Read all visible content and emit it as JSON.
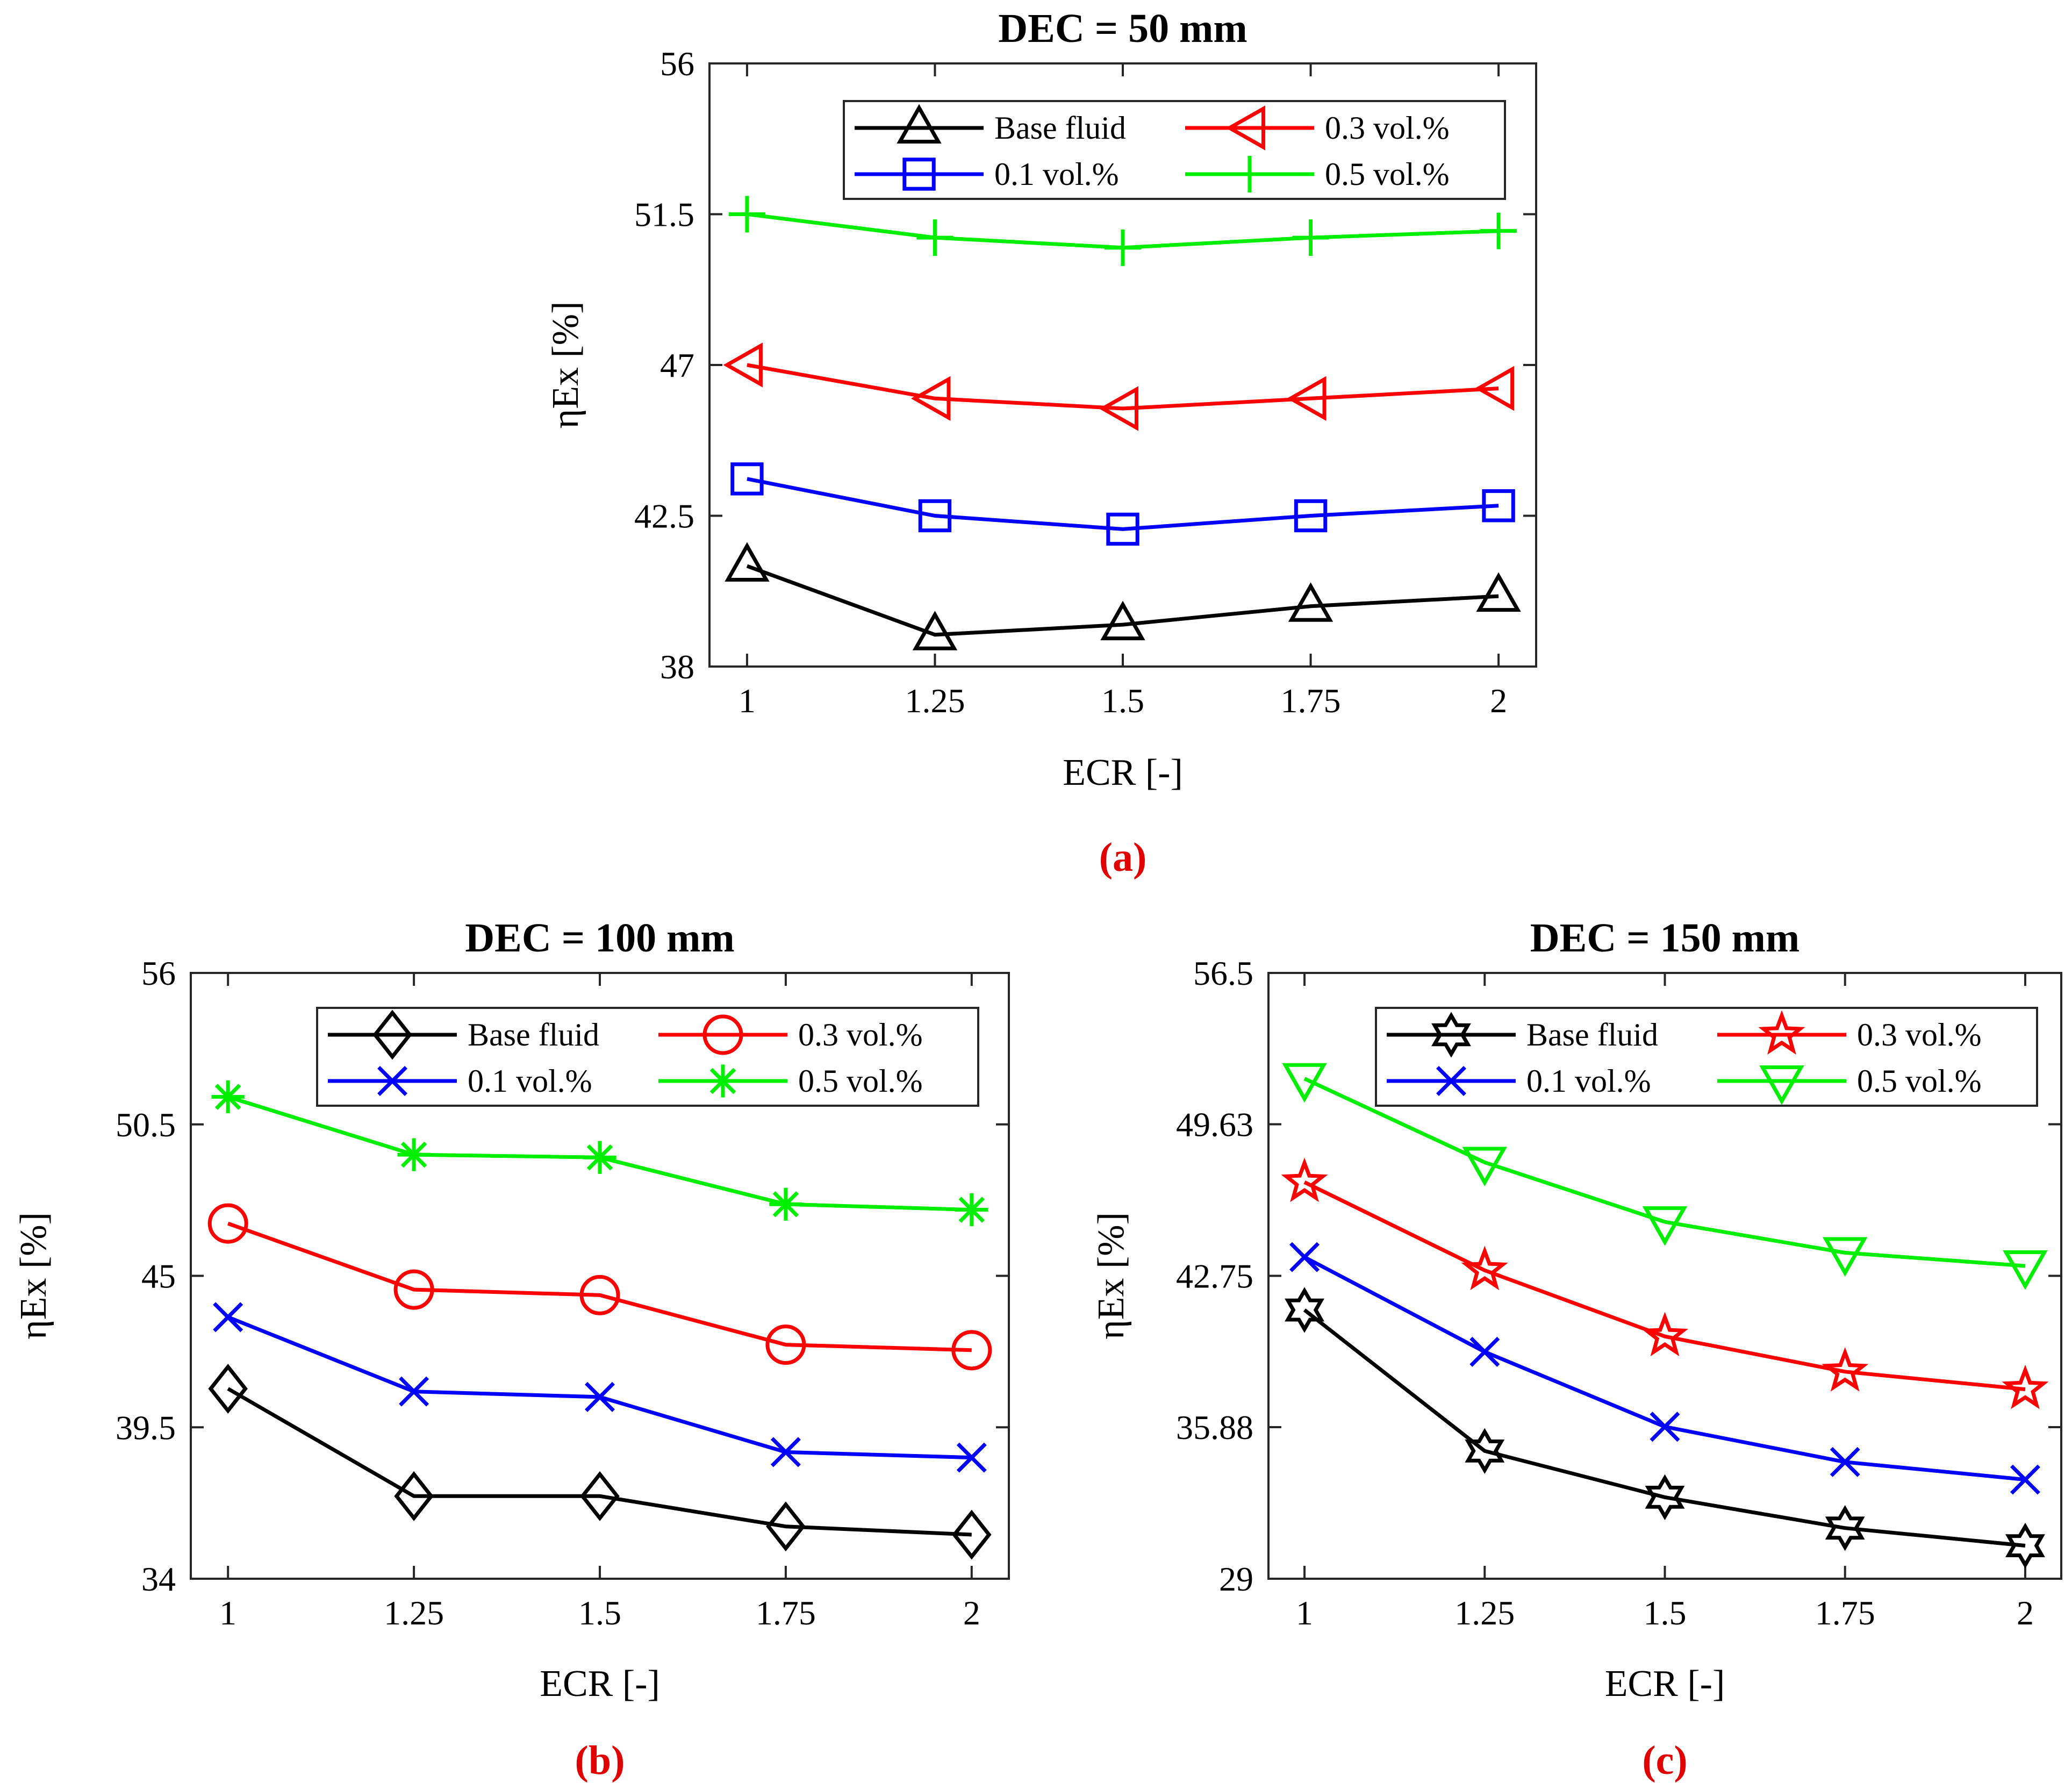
{
  "chart_data": [
    {
      "type": "line",
      "panel_label": "(a)",
      "title": "DEC = 50 mm",
      "xlabel": "ECR [-]",
      "ylabel": "ηEx [%]",
      "x": [
        1,
        1.25,
        1.5,
        1.75,
        2
      ],
      "x_ticks": [
        "1",
        "1.25",
        "1.5",
        "1.75",
        "2"
      ],
      "y_ticks": [
        "38",
        "42.5",
        "47",
        "51.5",
        "56"
      ],
      "xlim": [
        0.95,
        2.05
      ],
      "ylim": [
        38,
        56
      ],
      "legend_location": "top-right",
      "series": [
        {
          "name": "Base fluid",
          "marker": "triangle-up",
          "color": "#000000",
          "values": [
            41.0,
            38.95,
            39.25,
            39.8,
            40.1
          ]
        },
        {
          "name": "0.3 vol.%",
          "marker": "triangle-left",
          "color": "#ff0000",
          "values": [
            47.0,
            46.0,
            45.7,
            46.0,
            46.3
          ]
        },
        {
          "name": "0.1 vol.%",
          "marker": "square",
          "color": "#0000ff",
          "values": [
            43.6,
            42.5,
            42.1,
            42.5,
            42.8
          ]
        },
        {
          "name": "0.5 vol.%",
          "marker": "plus",
          "color": "#00ee00",
          "values": [
            51.5,
            50.8,
            50.5,
            50.8,
            51.0
          ]
        }
      ]
    },
    {
      "type": "line",
      "panel_label": "(b)",
      "title": "DEC = 100 mm",
      "xlabel": "ECR [-]",
      "ylabel": "ηEx [%]",
      "x": [
        1,
        1.25,
        1.5,
        1.75,
        2
      ],
      "x_ticks": [
        "1",
        "1.25",
        "1.5",
        "1.75",
        "2"
      ],
      "y_ticks": [
        "34",
        "39.5",
        "45",
        "50.5",
        "56"
      ],
      "xlim": [
        0.95,
        2.05
      ],
      "ylim": [
        34,
        56
      ],
      "legend_location": "top-right",
      "series": [
        {
          "name": "Base fluid",
          "marker": "diamond",
          "color": "#000000",
          "values": [
            40.9,
            37.0,
            37.0,
            35.9,
            35.6
          ]
        },
        {
          "name": "0.3 vol.%",
          "marker": "circle",
          "color": "#ff0000",
          "values": [
            46.9,
            44.5,
            44.3,
            42.5,
            42.3
          ]
        },
        {
          "name": "0.1 vol.%",
          "marker": "x",
          "color": "#0000ff",
          "values": [
            43.5,
            40.8,
            40.6,
            38.6,
            38.4
          ]
        },
        {
          "name": "0.5 vol.%",
          "marker": "asterisk",
          "color": "#00ee00",
          "values": [
            51.5,
            49.4,
            49.3,
            47.6,
            47.4
          ]
        }
      ]
    },
    {
      "type": "line",
      "panel_label": "(c)",
      "title": "DEC = 150 mm",
      "xlabel": "ECR [-]",
      "ylabel": "ηEx [%]",
      "x": [
        1,
        1.25,
        1.5,
        1.75,
        2
      ],
      "x_ticks": [
        "1",
        "1.25",
        "1.5",
        "1.75",
        "2"
      ],
      "y_ticks": [
        "29",
        "35.88",
        "42.75",
        "49.63",
        "56.5"
      ],
      "xlim": [
        0.95,
        2.05
      ],
      "ylim": [
        29,
        56.5
      ],
      "legend_location": "top-right",
      "series": [
        {
          "name": "Base fluid",
          "marker": "hexagram",
          "color": "#000000",
          "values": [
            41.2,
            34.8,
            32.7,
            31.3,
            30.5
          ]
        },
        {
          "name": "0.3 vol.%",
          "marker": "pentagram",
          "color": "#ff0000",
          "values": [
            47.0,
            43.0,
            40.0,
            38.4,
            37.6
          ]
        },
        {
          "name": "0.1 vol.%",
          "marker": "x",
          "color": "#0000ff",
          "values": [
            43.6,
            39.3,
            35.9,
            34.3,
            33.5
          ]
        },
        {
          "name": "0.5 vol.%",
          "marker": "triangle-down",
          "color": "#00ee00",
          "values": [
            51.7,
            47.9,
            45.2,
            43.8,
            43.2
          ]
        }
      ]
    }
  ]
}
